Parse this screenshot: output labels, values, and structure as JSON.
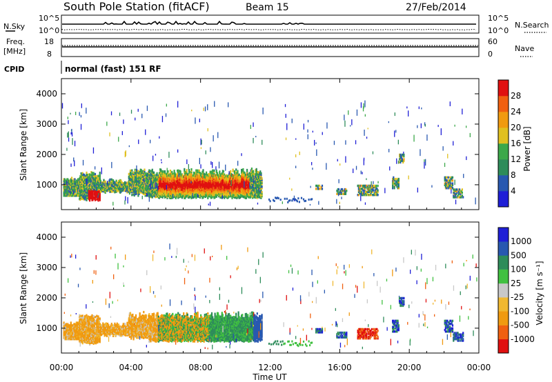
{
  "header": {
    "station": "South Pole Station (fitACF)",
    "beam": "Beam 15",
    "date": "27/Feb/2014"
  },
  "top_panels": {
    "nsky_label": "N.Sky",
    "nsky_ticks": [
      "10^5",
      "10^0"
    ],
    "nsearch_label": "N.Search",
    "nsearch_ticks": [
      "10^5",
      "10^0"
    ],
    "freq_label_1": "Freq.",
    "freq_label_2": "[MHz]",
    "freq_ticks": [
      "18",
      "8"
    ],
    "nave_label": "Nave",
    "nave_ticks": [
      "60",
      "0"
    ],
    "cpid_label": "CPID",
    "cpid_value": "normal (fast) 151 RF"
  },
  "colors": {
    "power": [
      "#1f1fd6",
      "#2858b0",
      "#2e8c5a",
      "#3ca84a",
      "#e0c020",
      "#f09a10",
      "#f06010",
      "#e01010"
    ],
    "velocity": [
      "#e01010",
      "#f06010",
      "#f09a10",
      "#f0b830",
      "#c8c8c8",
      "#40c040",
      "#2e8c5a",
      "#2858b0",
      "#1f1fd6"
    ]
  },
  "chart_data": [
    {
      "type": "heatmap",
      "name": "power",
      "xlabel": "",
      "ylabel": "Slant Range [km]",
      "x_ticks": [
        "00:00",
        "04:00",
        "08:00",
        "12:00",
        "16:00",
        "20:00",
        "00:00"
      ],
      "y_ticks": [
        "1000",
        "2000",
        "3000",
        "4000"
      ],
      "xlim_hours": [
        0,
        24
      ],
      "ylim_km": [
        180,
        4500
      ],
      "colorbar_label": "Power [dB]",
      "colorbar_ticks": [
        "4",
        "8",
        "12",
        "16",
        "20",
        "24",
        "28"
      ],
      "colorbar_range": [
        0,
        30
      ]
    },
    {
      "type": "heatmap",
      "name": "velocity",
      "xlabel": "Time UT",
      "ylabel": "Slant Range [km]",
      "x_ticks": [
        "00:00",
        "04:00",
        "08:00",
        "12:00",
        "16:00",
        "20:00",
        "00:00"
      ],
      "y_ticks": [
        "1000",
        "2000",
        "3000",
        "4000"
      ],
      "xlim_hours": [
        0,
        24
      ],
      "ylim_km": [
        180,
        4500
      ],
      "colorbar_label": "Velocity [m s⁻¹]",
      "colorbar_ticks": [
        "1000",
        "500",
        "100",
        "25",
        "-25",
        "-100",
        "-500",
        "-1000"
      ]
    }
  ]
}
